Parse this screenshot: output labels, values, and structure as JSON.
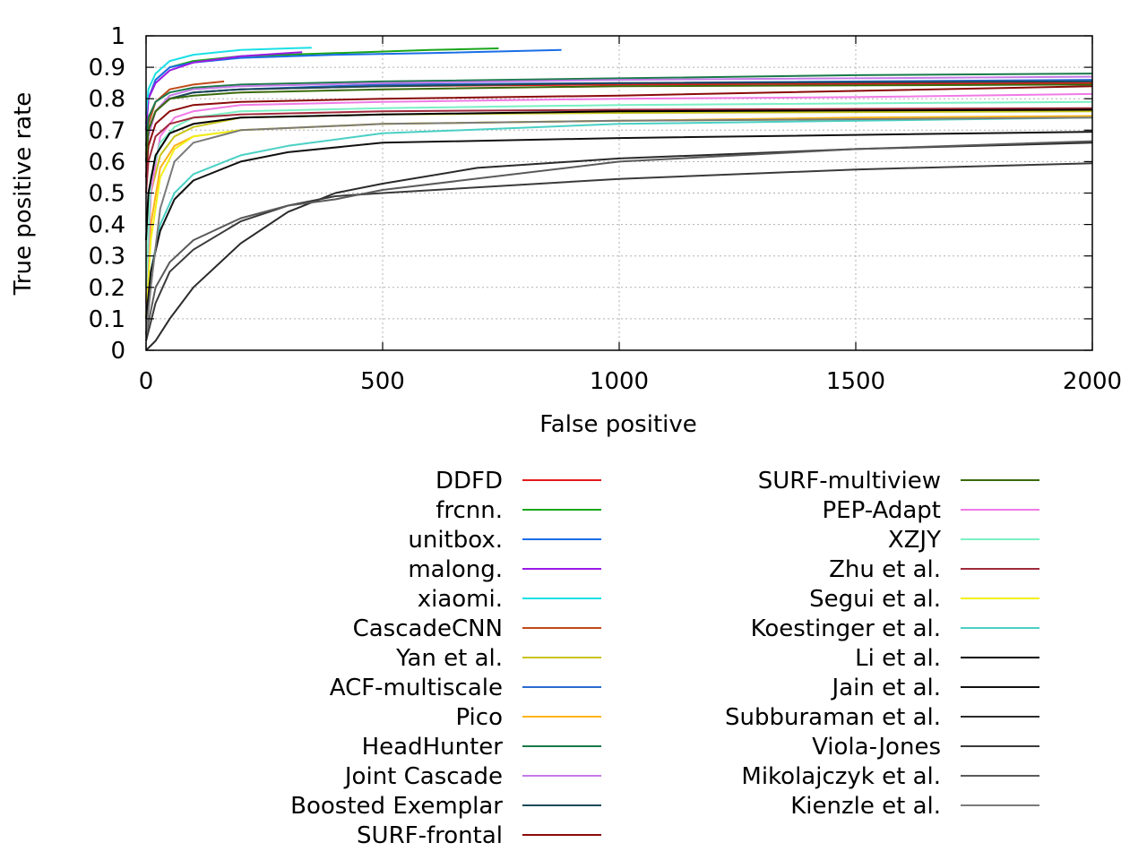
{
  "chart_data": {
    "type": "line",
    "title": "",
    "xlabel": "False positive",
    "ylabel": "True positive rate",
    "xlim": [
      0,
      2000
    ],
    "ylim": [
      0,
      1
    ],
    "xticks": [
      0,
      500,
      1000,
      1500,
      2000
    ],
    "yticks": [
      0,
      0.1,
      0.2,
      0.3,
      0.4,
      0.5,
      0.6,
      0.7,
      0.8,
      0.9,
      1
    ],
    "grid": true,
    "legend_position": "bottom, two columns",
    "series": [
      {
        "name": "DDFD",
        "color": "#e41a1c",
        "points": [
          [
            0,
            0.6
          ],
          [
            5,
            0.7
          ],
          [
            20,
            0.76
          ],
          [
            50,
            0.8
          ],
          [
            100,
            0.82
          ],
          [
            200,
            0.83
          ],
          [
            500,
            0.84
          ],
          [
            1000,
            0.845
          ],
          [
            2000,
            0.85
          ]
        ]
      },
      {
        "name": "frcnn.",
        "color": "#1aa51a",
        "points": [
          [
            0,
            0.7
          ],
          [
            5,
            0.8
          ],
          [
            20,
            0.86
          ],
          [
            50,
            0.9
          ],
          [
            100,
            0.92
          ],
          [
            200,
            0.935
          ],
          [
            400,
            0.945
          ],
          [
            600,
            0.955
          ],
          [
            745,
            0.96
          ]
        ]
      },
      {
        "name": "unitbox.",
        "color": "#1a6ee6",
        "points": [
          [
            0,
            0.72
          ],
          [
            5,
            0.8
          ],
          [
            20,
            0.86
          ],
          [
            50,
            0.9
          ],
          [
            100,
            0.915
          ],
          [
            200,
            0.93
          ],
          [
            400,
            0.94
          ],
          [
            600,
            0.945
          ],
          [
            878,
            0.955
          ]
        ]
      },
      {
        "name": "malong.",
        "color": "#9a1ae6",
        "points": [
          [
            0,
            0.7
          ],
          [
            5,
            0.8
          ],
          [
            20,
            0.85
          ],
          [
            50,
            0.89
          ],
          [
            100,
            0.915
          ],
          [
            200,
            0.935
          ],
          [
            300,
            0.945
          ],
          [
            330,
            0.948
          ]
        ]
      },
      {
        "name": "xiaomi.",
        "color": "#1ae0e6",
        "points": [
          [
            0,
            0.75
          ],
          [
            5,
            0.83
          ],
          [
            20,
            0.88
          ],
          [
            50,
            0.92
          ],
          [
            100,
            0.94
          ],
          [
            200,
            0.955
          ],
          [
            300,
            0.96
          ],
          [
            350,
            0.962
          ]
        ]
      },
      {
        "name": "CascadeCNN",
        "color": "#c04a1a",
        "points": [
          [
            0,
            0.62
          ],
          [
            5,
            0.72
          ],
          [
            20,
            0.79
          ],
          [
            50,
            0.83
          ],
          [
            100,
            0.845
          ],
          [
            165,
            0.855
          ]
        ]
      },
      {
        "name": "Yan et al.",
        "color": "#c8c41a",
        "points": [
          [
            0,
            0.15
          ],
          [
            10,
            0.5
          ],
          [
            30,
            0.62
          ],
          [
            60,
            0.68
          ],
          [
            100,
            0.71
          ],
          [
            200,
            0.74
          ],
          [
            500,
            0.75
          ],
          [
            1000,
            0.755
          ],
          [
            2000,
            0.76
          ]
        ]
      },
      {
        "name": "ACF-multiscale",
        "color": "#2a6ad0",
        "points": [
          [
            0,
            0.6
          ],
          [
            5,
            0.7
          ],
          [
            20,
            0.76
          ],
          [
            50,
            0.8
          ],
          [
            100,
            0.82
          ],
          [
            200,
            0.83
          ],
          [
            500,
            0.845
          ],
          [
            1000,
            0.85
          ],
          [
            2000,
            0.86
          ]
        ]
      },
      {
        "name": "Pico",
        "color": "#ffb31a",
        "points": [
          [
            0,
            0.1
          ],
          [
            10,
            0.4
          ],
          [
            30,
            0.58
          ],
          [
            60,
            0.65
          ],
          [
            100,
            0.68
          ],
          [
            200,
            0.7
          ],
          [
            500,
            0.72
          ],
          [
            1000,
            0.73
          ],
          [
            1500,
            0.74
          ],
          [
            2000,
            0.745
          ]
        ]
      },
      {
        "name": "HeadHunter",
        "color": "#1a7a4a",
        "points": [
          [
            0,
            0.65
          ],
          [
            5,
            0.74
          ],
          [
            20,
            0.79
          ],
          [
            50,
            0.82
          ],
          [
            100,
            0.835
          ],
          [
            200,
            0.845
          ],
          [
            500,
            0.855
          ],
          [
            1000,
            0.865
          ],
          [
            1500,
            0.875
          ],
          [
            2000,
            0.88
          ]
        ]
      },
      {
        "name": "Joint Cascade",
        "color": "#c47ae6",
        "points": [
          [
            0,
            0.55
          ],
          [
            5,
            0.68
          ],
          [
            20,
            0.76
          ],
          [
            50,
            0.81
          ],
          [
            100,
            0.83
          ],
          [
            200,
            0.84
          ],
          [
            500,
            0.85
          ],
          [
            1000,
            0.86
          ],
          [
            2000,
            0.87
          ]
        ]
      },
      {
        "name": "Boosted Exemplar",
        "color": "#1a4a5a",
        "points": [
          [
            0,
            0.6
          ],
          [
            5,
            0.7
          ],
          [
            20,
            0.76
          ],
          [
            50,
            0.8
          ],
          [
            100,
            0.82
          ],
          [
            200,
            0.83
          ],
          [
            500,
            0.84
          ],
          [
            1000,
            0.85
          ],
          [
            2000,
            0.855
          ]
        ]
      },
      {
        "name": "SURF-frontal",
        "color": "#8a0a0a",
        "points": [
          [
            0,
            0.55
          ],
          [
            5,
            0.65
          ],
          [
            20,
            0.72
          ],
          [
            50,
            0.76
          ],
          [
            100,
            0.78
          ],
          [
            200,
            0.79
          ],
          [
            500,
            0.8
          ],
          [
            1000,
            0.81
          ],
          [
            2000,
            0.84
          ]
        ]
      },
      {
        "name": "SURF-multiview",
        "color": "#3a6a0a",
        "points": [
          [
            0,
            0.6
          ],
          [
            5,
            0.7
          ],
          [
            20,
            0.76
          ],
          [
            50,
            0.8
          ],
          [
            100,
            0.81
          ],
          [
            200,
            0.82
          ],
          [
            500,
            0.83
          ],
          [
            1000,
            0.84
          ],
          [
            2000,
            0.845
          ]
        ]
      },
      {
        "name": "PEP-Adapt",
        "color": "#f07ae6",
        "points": [
          [
            0,
            0.15
          ],
          [
            10,
            0.5
          ],
          [
            30,
            0.68
          ],
          [
            60,
            0.74
          ],
          [
            100,
            0.76
          ],
          [
            200,
            0.78
          ],
          [
            500,
            0.79
          ],
          [
            1000,
            0.8
          ],
          [
            1500,
            0.805
          ],
          [
            2000,
            0.815
          ]
        ]
      },
      {
        "name": "XZJY",
        "color": "#7af0c4",
        "points": [
          [
            0,
            0.2
          ],
          [
            10,
            0.55
          ],
          [
            30,
            0.66
          ],
          [
            60,
            0.71
          ],
          [
            100,
            0.74
          ],
          [
            200,
            0.76
          ],
          [
            500,
            0.77
          ],
          [
            1000,
            0.78
          ],
          [
            2000,
            0.79
          ]
        ]
      },
      {
        "name": "Zhu et al.",
        "color": "#a02a3a",
        "points": [
          [
            0,
            0.5
          ],
          [
            5,
            0.6
          ],
          [
            20,
            0.68
          ],
          [
            50,
            0.72
          ],
          [
            100,
            0.74
          ],
          [
            200,
            0.75
          ],
          [
            500,
            0.76
          ],
          [
            1000,
            0.765
          ],
          [
            2000,
            0.77
          ]
        ]
      },
      {
        "name": "Segui et al.",
        "color": "#f0f01a",
        "points": [
          [
            0,
            0.1
          ],
          [
            10,
            0.35
          ],
          [
            30,
            0.55
          ],
          [
            60,
            0.64
          ],
          [
            100,
            0.68
          ],
          [
            200,
            0.7
          ],
          [
            500,
            0.72
          ],
          [
            1000,
            0.73
          ],
          [
            2000,
            0.74
          ]
        ]
      },
      {
        "name": "Koestinger et al.",
        "color": "#4ad0c4",
        "points": [
          [
            0,
            0.05
          ],
          [
            10,
            0.25
          ],
          [
            30,
            0.4
          ],
          [
            60,
            0.5
          ],
          [
            100,
            0.56
          ],
          [
            200,
            0.62
          ],
          [
            300,
            0.65
          ],
          [
            500,
            0.69
          ],
          [
            1000,
            0.72
          ],
          [
            2000,
            0.74
          ]
        ]
      },
      {
        "name": "Li et al.",
        "color": "#000000",
        "points": [
          [
            0,
            0.35
          ],
          [
            5,
            0.5
          ],
          [
            20,
            0.62
          ],
          [
            50,
            0.69
          ],
          [
            100,
            0.72
          ],
          [
            200,
            0.74
          ],
          [
            500,
            0.75
          ],
          [
            1000,
            0.76
          ],
          [
            2000,
            0.765
          ]
        ]
      },
      {
        "name": "Jain et al.",
        "color": "#111111",
        "points": [
          [
            0,
            0.1
          ],
          [
            10,
            0.25
          ],
          [
            30,
            0.38
          ],
          [
            60,
            0.48
          ],
          [
            100,
            0.54
          ],
          [
            200,
            0.6
          ],
          [
            300,
            0.63
          ],
          [
            500,
            0.66
          ],
          [
            1000,
            0.675
          ],
          [
            2000,
            0.695
          ]
        ]
      },
      {
        "name": "Subburaman et al.",
        "color": "#2a2a2a",
        "points": [
          [
            0,
            0.0
          ],
          [
            20,
            0.03
          ],
          [
            50,
            0.1
          ],
          [
            100,
            0.2
          ],
          [
            200,
            0.34
          ],
          [
            300,
            0.44
          ],
          [
            400,
            0.5
          ],
          [
            500,
            0.53
          ],
          [
            700,
            0.58
          ],
          [
            1000,
            0.61
          ],
          [
            1500,
            0.64
          ],
          [
            2000,
            0.66
          ]
        ]
      },
      {
        "name": "Viola-Jones",
        "color": "#3a3a3a",
        "points": [
          [
            0,
            0.03
          ],
          [
            20,
            0.15
          ],
          [
            50,
            0.25
          ],
          [
            100,
            0.32
          ],
          [
            200,
            0.41
          ],
          [
            300,
            0.46
          ],
          [
            400,
            0.49
          ],
          [
            500,
            0.5
          ],
          [
            1000,
            0.545
          ],
          [
            1500,
            0.575
          ],
          [
            2000,
            0.595
          ]
        ]
      },
      {
        "name": "Mikolajczyk et al.",
        "color": "#5a5a5a",
        "points": [
          [
            0,
            0.05
          ],
          [
            20,
            0.2
          ],
          [
            50,
            0.28
          ],
          [
            100,
            0.35
          ],
          [
            200,
            0.42
          ],
          [
            300,
            0.46
          ],
          [
            400,
            0.48
          ],
          [
            500,
            0.51
          ],
          [
            1000,
            0.6
          ],
          [
            1500,
            0.64
          ],
          [
            2000,
            0.665
          ]
        ]
      },
      {
        "name": "Kienzle et al.",
        "color": "#7a7a7a",
        "points": [
          [
            0,
            0.05
          ],
          [
            10,
            0.2
          ],
          [
            30,
            0.45
          ],
          [
            60,
            0.6
          ],
          [
            100,
            0.66
          ],
          [
            200,
            0.7
          ],
          [
            500,
            0.72
          ],
          [
            1000,
            0.73
          ],
          [
            2000,
            0.74
          ]
        ]
      }
    ]
  }
}
